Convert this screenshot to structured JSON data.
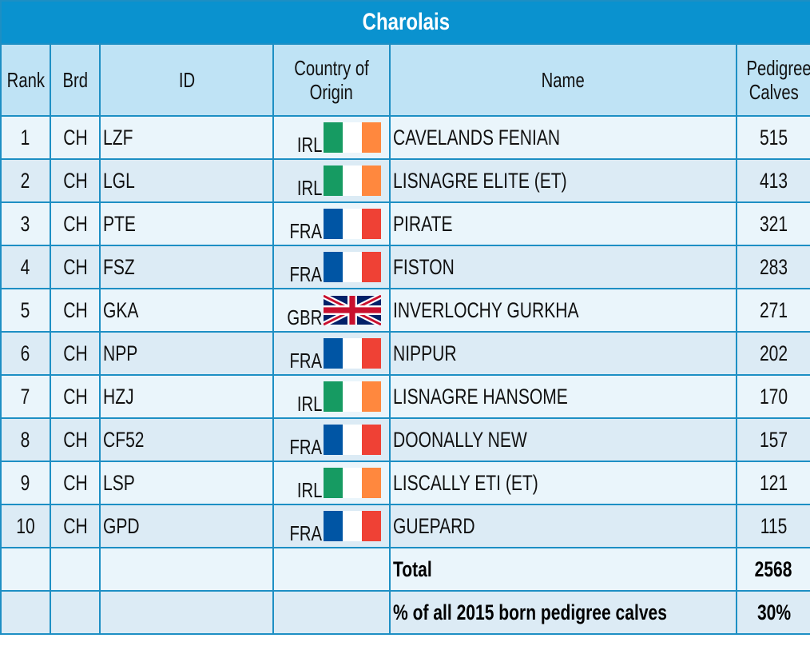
{
  "title": "Charolais",
  "headers": {
    "rank": "Rank",
    "brd": "Brd",
    "id": "ID",
    "country_line1": "Country of",
    "country_line2": "Origin",
    "name": "Name",
    "calves_line1": "Pedigree",
    "calves_line2": "Calves"
  },
  "rows": [
    {
      "rank": "1",
      "brd": "CH",
      "id": "LZF",
      "country": "IRL",
      "flag": "ireland",
      "name": "CAVELANDS FENIAN",
      "calves": "515"
    },
    {
      "rank": "2",
      "brd": "CH",
      "id": "LGL",
      "country": "IRL",
      "flag": "ireland",
      "name": "LISNAGRE ELITE (ET)",
      "calves": "413"
    },
    {
      "rank": "3",
      "brd": "CH",
      "id": "PTE",
      "country": "FRA",
      "flag": "france",
      "name": "PIRATE",
      "calves": "321"
    },
    {
      "rank": "4",
      "brd": "CH",
      "id": "FSZ",
      "country": "FRA",
      "flag": "france",
      "name": "FISTON",
      "calves": "283"
    },
    {
      "rank": "5",
      "brd": "CH",
      "id": "GKA",
      "country": "GBR",
      "flag": "uk",
      "name": "INVERLOCHY GURKHA",
      "calves": "271"
    },
    {
      "rank": "6",
      "brd": "CH",
      "id": "NPP",
      "country": "FRA",
      "flag": "france",
      "name": "NIPPUR",
      "calves": "202"
    },
    {
      "rank": "7",
      "brd": "CH",
      "id": "HZJ",
      "country": "IRL",
      "flag": "ireland",
      "name": "LISNAGRE HANSOME",
      "calves": "170"
    },
    {
      "rank": "8",
      "brd": "CH",
      "id": "CF52",
      "country": "FRA",
      "flag": "france",
      "name": "DOONALLY NEW",
      "calves": "157"
    },
    {
      "rank": "9",
      "brd": "CH",
      "id": "LSP",
      "country": "IRL",
      "flag": "ireland",
      "name": "LISCALLY ETI (ET)",
      "calves": "121"
    },
    {
      "rank": "10",
      "brd": "CH",
      "id": "GPD",
      "country": "FRA",
      "flag": "france",
      "name": "GUEPARD",
      "calves": "115"
    }
  ],
  "total": {
    "label": "Total",
    "value": "2568"
  },
  "percent": {
    "label": "% of all 2015 born pedigree calves",
    "value": "30%"
  },
  "colors": {
    "title_bg": "#0a92cf",
    "header_bg": "#bfe3f5",
    "border": "#1d8fc4",
    "ireland_green": "#169b62",
    "ireland_orange": "#ff883e",
    "france_blue": "#0055a4",
    "france_red": "#ef4135"
  }
}
